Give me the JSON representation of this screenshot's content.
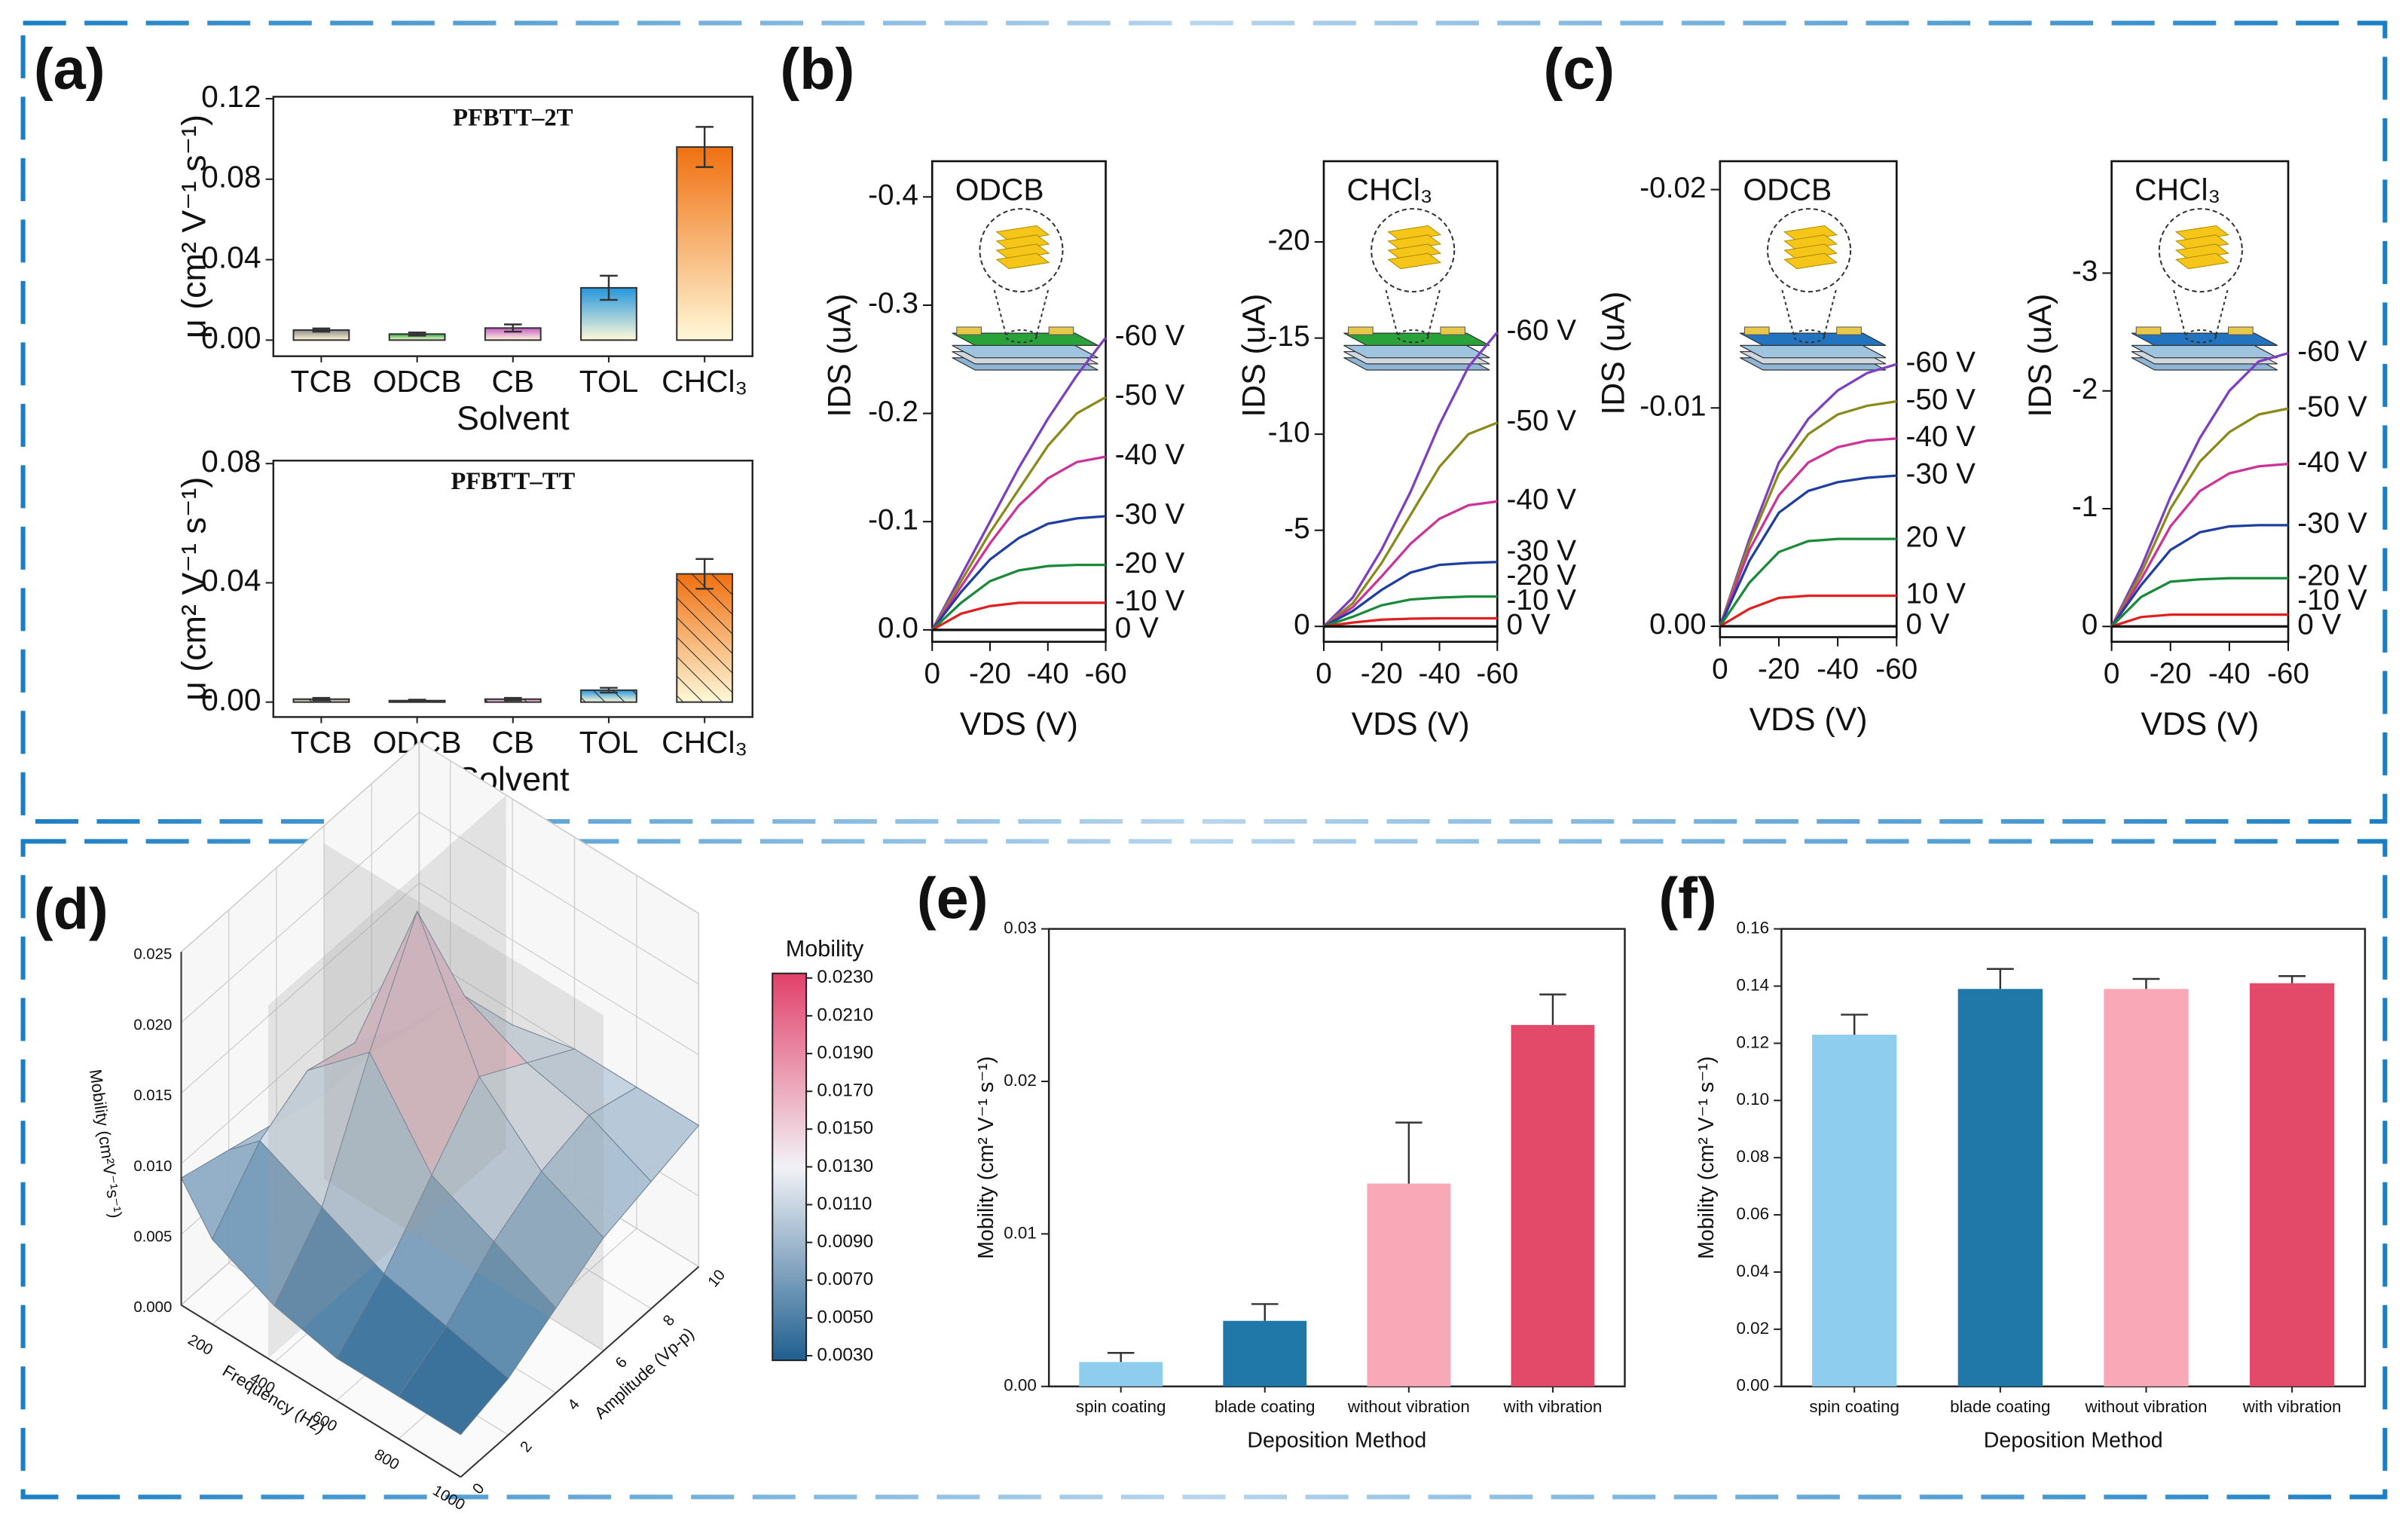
{
  "chart_data": [
    {
      "type": "bar",
      "panel_label": "(a)",
      "title": "PFBTT–2T",
      "categories": [
        "TCB",
        "ODCB",
        "CB",
        "TOL",
        "CHCl₃"
      ],
      "values": [
        0.005,
        0.003,
        0.006,
        0.026,
        0.096
      ],
      "errors": [
        0.0008,
        0.0008,
        0.0018,
        0.006,
        0.01
      ],
      "colors": [
        "#8a8a8a",
        "#2fae3f",
        "#c45ec8",
        "#2496dc",
        "#f07010"
      ],
      "ylim": [
        -0.008,
        0.121
      ],
      "yticks": [
        {
          "value": 0,
          "label": "0.00"
        },
        0.04,
        0.08,
        0.12
      ],
      "xlabel": "Solvent",
      "ylabel": "μ (cm² V⁻¹ s⁻¹)"
    },
    {
      "type": "bar",
      "title": "PFBTT–TT",
      "categories": [
        "TCB",
        "ODCB",
        "CB",
        "TOL",
        "CHCl₃"
      ],
      "values": [
        0.001,
        0.0005,
        0.001,
        0.004,
        0.043
      ],
      "errors": [
        0.0004,
        0.0003,
        0.0004,
        0.0008,
        0.005
      ],
      "colors": [
        "#8a8a8a",
        "#2fae3f",
        "#c45ec8",
        "#2496dc",
        "#f07010"
      ],
      "ylim": [
        -0.005,
        0.081
      ],
      "yticks": [
        {
          "value": 0,
          "label": "0.00"
        },
        0.04,
        0.08
      ],
      "xlabel": "Solvent",
      "ylabel": "μ (cm² V⁻¹ s⁻¹)"
    },
    {
      "type": "line",
      "panel_label": "(b)",
      "inset_label": "ODCB",
      "x": [
        0,
        -10,
        -20,
        -30,
        -40,
        -50,
        -60
      ],
      "xlim": [
        0,
        -60
      ],
      "xticks": [
        0,
        -20,
        -40,
        -60
      ],
      "ylim": [
        0.011,
        -0.433
      ],
      "yticks": [
        {
          "value": 0,
          "label": "0.0"
        },
        -0.1,
        -0.2,
        -0.3,
        -0.4
      ],
      "xlabel": "VDS (V)",
      "ylabel": "IDS (uA)",
      "series": [
        {
          "name": "-60 V",
          "color": "#7b3fbf",
          "values": [
            0,
            -0.05,
            -0.1,
            -0.15,
            -0.195,
            -0.235,
            -0.27
          ]
        },
        {
          "name": "-50 V",
          "color": "#8a8a1a",
          "values": [
            0,
            -0.045,
            -0.09,
            -0.13,
            -0.17,
            -0.2,
            -0.215
          ]
        },
        {
          "name": "-40 V",
          "color": "#cc3399",
          "values": [
            0,
            -0.04,
            -0.08,
            -0.115,
            -0.14,
            -0.155,
            -0.16
          ]
        },
        {
          "name": "-30 V",
          "color": "#1f3fa0",
          "values": [
            0,
            -0.035,
            -0.065,
            -0.085,
            -0.098,
            -0.103,
            -0.105
          ]
        },
        {
          "name": "-20 V",
          "color": "#1a8a3a",
          "values": [
            0,
            -0.025,
            -0.045,
            -0.055,
            -0.059,
            -0.06,
            -0.06
          ]
        },
        {
          "name": "-10 V",
          "color": "#e02020",
          "values": [
            0,
            -0.015,
            -0.022,
            -0.025,
            -0.025,
            -0.025,
            -0.025
          ]
        },
        {
          "name": "0 V",
          "color": "#111111",
          "values": [
            0,
            0,
            0,
            0,
            0,
            0,
            0
          ]
        }
      ]
    },
    {
      "type": "line",
      "inset_label": "CHCl₃",
      "x": [
        0,
        -10,
        -20,
        -30,
        -40,
        -50,
        -60
      ],
      "xlim": [
        0,
        -60
      ],
      "xticks": [
        0,
        -20,
        -40,
        -60
      ],
      "ylim": [
        0.8,
        -24.2
      ],
      "yticks": [
        0,
        -5,
        -10,
        -15,
        -20
      ],
      "xlabel": "VDS (V)",
      "ylabel": "IDS (uA)",
      "series": [
        {
          "name": "-60 V",
          "color": "#7b3fbf",
          "values": [
            0,
            -1.5,
            -4,
            -7,
            -10.5,
            -13.5,
            -15.3
          ]
        },
        {
          "name": "-50 V",
          "color": "#8a8a1a",
          "values": [
            0,
            -1.2,
            -3.3,
            -5.8,
            -8.3,
            -10,
            -10.6
          ]
        },
        {
          "name": "-40 V",
          "color": "#cc3399",
          "values": [
            0,
            -1,
            -2.6,
            -4.3,
            -5.6,
            -6.3,
            -6.5
          ]
        },
        {
          "name": "-30 V",
          "color": "#1f3fa0",
          "values": [
            0,
            -0.8,
            -1.9,
            -2.8,
            -3.2,
            -3.3,
            -3.35
          ]
        },
        {
          "name": "-20 V",
          "color": "#1a8a3a",
          "values": [
            0,
            -0.5,
            -1.1,
            -1.4,
            -1.5,
            -1.55,
            -1.55
          ]
        },
        {
          "name": "-10 V",
          "color": "#e02020",
          "values": [
            0,
            -0.2,
            -0.35,
            -0.4,
            -0.42,
            -0.42,
            -0.42
          ]
        },
        {
          "name": "0 V",
          "color": "#111111",
          "values": [
            0,
            0,
            0,
            0,
            0,
            0,
            0
          ]
        }
      ]
    },
    {
      "type": "line",
      "panel_label": "(c)",
      "inset_label": "ODCB",
      "x": [
        0,
        -10,
        -20,
        -30,
        -40,
        -50,
        -60
      ],
      "xlim": [
        0,
        -60
      ],
      "xticks": [
        0,
        -20,
        -40,
        -60
      ],
      "ylim": [
        0.0005,
        -0.0213
      ],
      "yticks": [
        {
          "value": 0,
          "label": "0.00"
        },
        -0.01,
        -0.02
      ],
      "xlabel": "VDS (V)",
      "ylabel": "IDS (uA)",
      "series": [
        {
          "name": "-60 V",
          "color": "#7b3fbf",
          "values": [
            0,
            -0.004,
            -0.0075,
            -0.0095,
            -0.0108,
            -0.0116,
            -0.012
          ]
        },
        {
          "name": "-50 V",
          "color": "#8a8a1a",
          "values": [
            0,
            -0.0038,
            -0.007,
            -0.0088,
            -0.0097,
            -0.0101,
            -0.0103
          ]
        },
        {
          "name": "-40 V",
          "color": "#cc3399",
          "values": [
            0,
            -0.0035,
            -0.006,
            -0.0075,
            -0.0082,
            -0.0085,
            -0.0086
          ]
        },
        {
          "name": "-30 V",
          "color": "#1f3fa0",
          "values": [
            0,
            -0.003,
            -0.0052,
            -0.0062,
            -0.0066,
            -0.0068,
            -0.0069
          ]
        },
        {
          "name": "20 V",
          "color": "#1a8a3a",
          "values": [
            0,
            -0.002,
            -0.0034,
            -0.0039,
            -0.004,
            -0.004,
            -0.004
          ]
        },
        {
          "name": "10 V",
          "color": "#e02020",
          "values": [
            0,
            -0.0008,
            -0.0013,
            -0.0014,
            -0.0014,
            -0.0014,
            -0.0014
          ]
        },
        {
          "name": "0 V",
          "color": "#111111",
          "values": [
            0,
            0,
            0,
            0,
            0,
            0,
            0
          ]
        }
      ]
    },
    {
      "type": "line",
      "inset_label": "CHCl₃",
      "x": [
        0,
        -10,
        -20,
        -30,
        -40,
        -50,
        -60
      ],
      "xlim": [
        0,
        -60
      ],
      "xticks": [
        0,
        -20,
        -40,
        -60
      ],
      "ylim": [
        0.13,
        -3.95
      ],
      "yticks": [
        0,
        -1,
        -2,
        -3
      ],
      "xlabel": "VDS (V)",
      "ylabel": "IDS (uA)",
      "series": [
        {
          "name": "-60 V",
          "color": "#7b3fbf",
          "values": [
            0,
            -0.5,
            -1.1,
            -1.6,
            -2,
            -2.25,
            -2.32
          ]
        },
        {
          "name": "-50 V",
          "color": "#8a8a1a",
          "values": [
            0,
            -0.45,
            -1,
            -1.4,
            -1.65,
            -1.8,
            -1.85
          ]
        },
        {
          "name": "-40 V",
          "color": "#cc3399",
          "values": [
            0,
            -0.4,
            -0.85,
            -1.15,
            -1.3,
            -1.36,
            -1.38
          ]
        },
        {
          "name": "-30 V",
          "color": "#1f3fa0",
          "values": [
            0,
            -0.35,
            -0.65,
            -0.8,
            -0.85,
            -0.86,
            -0.86
          ]
        },
        {
          "name": "-20 V",
          "color": "#1a8a3a",
          "values": [
            0,
            -0.25,
            -0.38,
            -0.4,
            -0.41,
            -0.41,
            -0.41
          ]
        },
        {
          "name": "-10 V",
          "color": "#e02020",
          "values": [
            0,
            -0.08,
            -0.1,
            -0.1,
            -0.1,
            -0.1,
            -0.1
          ]
        },
        {
          "name": "0 V",
          "color": "#111111",
          "values": [
            0,
            0,
            0,
            0,
            0,
            0,
            0
          ]
        }
      ]
    },
    {
      "type": "surface",
      "panel_label": "(d)",
      "x": [
        100,
        200,
        400,
        600,
        800,
        1000
      ],
      "y": [
        0,
        2,
        4,
        6,
        8,
        10
      ],
      "z": [
        [
          0.009,
          0.008,
          0.007,
          0.006,
          0.006,
          0.005
        ],
        [
          0.006,
          0.01,
          0.012,
          0.011,
          0.009,
          0.008
        ],
        [
          0.004,
          0.008,
          0.016,
          0.023,
          0.014,
          0.009
        ],
        [
          0.003,
          0.006,
          0.01,
          0.014,
          0.012,
          0.01
        ],
        [
          0.003,
          0.005,
          0.008,
          0.01,
          0.011,
          0.01
        ],
        [
          0.003,
          0.004,
          0.006,
          0.008,
          0.009,
          0.01
        ]
      ],
      "xlim": [
        100,
        1000
      ],
      "ylim": [
        0,
        10
      ],
      "zlim": [
        0,
        0.025
      ],
      "xticks": [
        200,
        400,
        600,
        800,
        1000
      ],
      "yticks": [
        0,
        2,
        4,
        6,
        8,
        10
      ],
      "zticks": [
        {
          "value": 0,
          "label": "0.000"
        },
        0.005,
        {
          "value": 0.01,
          "label": "0.010"
        },
        0.015,
        {
          "value": 0.02,
          "label": "0.020"
        },
        0.025
      ],
      "xlabel": "Frequency (Hz)",
      "ylabel": "Amplitude (Vp-p)",
      "zlabel": "Mobility (cm²V⁻¹s⁻¹)",
      "colorbar_title": "Mobility",
      "clim": [
        0.003,
        0.023
      ],
      "colormap": [
        "#1f5f8f",
        "#f2f2f6",
        "#e2406a"
      ],
      "cticks": [
        {
          "value": 0.003,
          "label": "0.0030"
        },
        {
          "value": 0.005,
          "label": "0.0050"
        },
        {
          "value": 0.007,
          "label": "0.0070"
        },
        {
          "value": 0.009,
          "label": "0.0090"
        },
        {
          "value": 0.011,
          "label": "0.0110"
        },
        {
          "value": 0.013,
          "label": "0.0130"
        },
        {
          "value": 0.015,
          "label": "0.0150"
        },
        {
          "value": 0.017,
          "label": "0.0170"
        },
        {
          "value": 0.019,
          "label": "0.0190"
        },
        {
          "value": 0.021,
          "label": "0.0210"
        },
        {
          "value": 0.023,
          "label": "0.0230"
        }
      ]
    },
    {
      "type": "bar",
      "panel_label": "(e)",
      "categories": [
        "spin coating",
        "blade coating",
        "without vibration",
        "with vibration"
      ],
      "values": [
        0.0016,
        0.0043,
        0.0133,
        0.0237
      ],
      "errors": [
        0.0006,
        0.0011,
        0.004,
        0.002
      ],
      "colors": [
        "#8fcdee",
        "#1f78a8",
        "#f9a8b8",
        "#e34a6a"
      ],
      "ylim": [
        0,
        0.03
      ],
      "yticks": [
        {
          "value": 0,
          "label": "0.00"
        },
        0.01,
        0.02,
        0.03
      ],
      "xlabel": "Deposition Method",
      "ylabel": "Mobility (cm² V⁻¹ s⁻¹)"
    },
    {
      "type": "bar",
      "panel_label": "(f)",
      "categories": [
        "spin coating",
        "blade coating",
        "without vibration",
        "with vibration"
      ],
      "values": [
        0.123,
        0.139,
        0.139,
        0.141
      ],
      "errors": [
        0.007,
        0.007,
        0.0035,
        0.0025
      ],
      "colors": [
        "#8fcdee",
        "#1f78a8",
        "#f9a8b8",
        "#e34a6a"
      ],
      "ylim": [
        0,
        0.16
      ],
      "yticks": [
        {
          "value": 0,
          "label": "0.00"
        },
        0.02,
        0.04,
        0.06,
        0.08,
        {
          "value": 0.1,
          "label": "0.10"
        },
        0.12,
        0.14,
        0.16
      ],
      "xlabel": "Deposition Method",
      "ylabel": "Mobility (cm² V⁻¹ s⁻¹)"
    }
  ]
}
